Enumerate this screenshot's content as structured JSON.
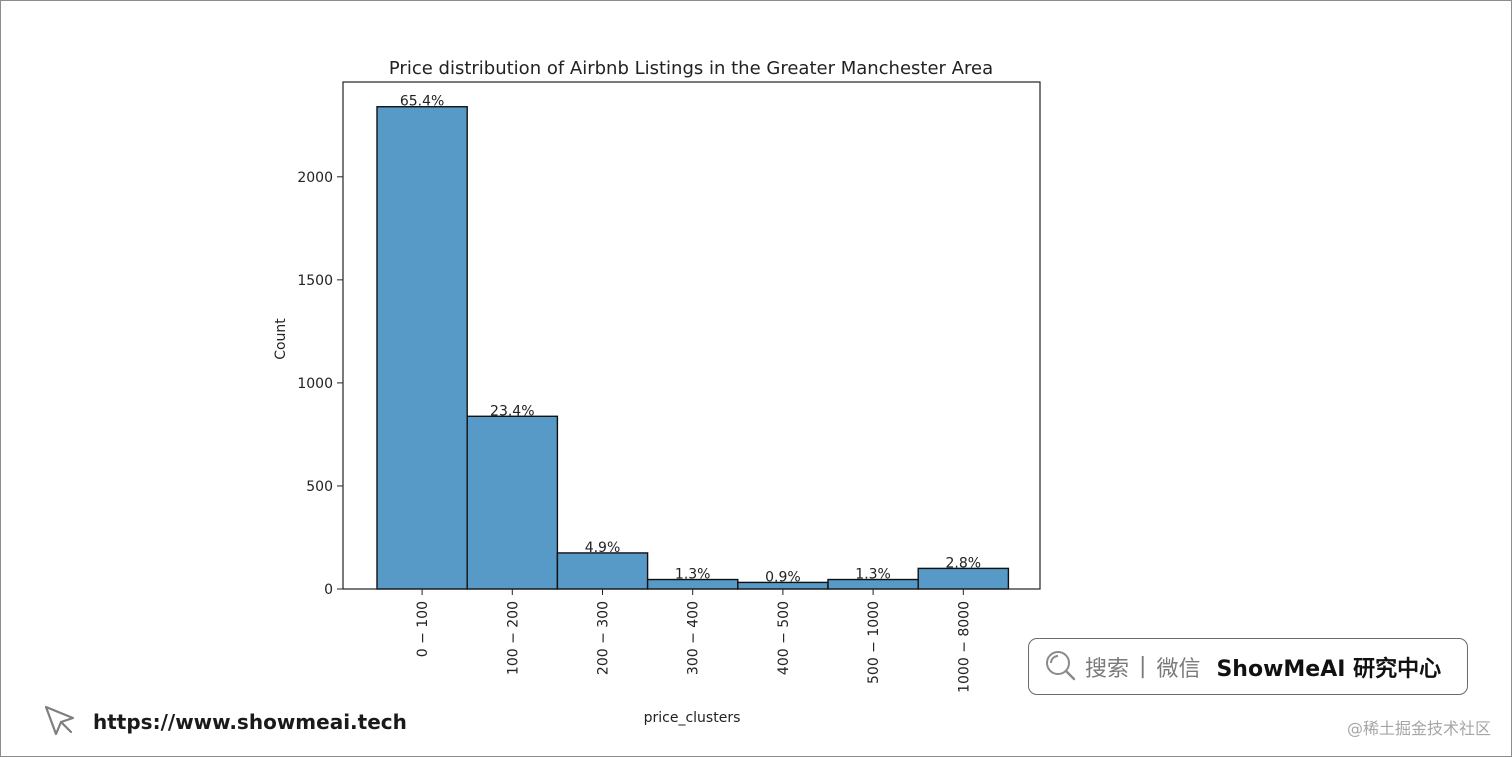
{
  "chart_data": {
    "type": "bar",
    "title": "Price distribution of Airbnb Listings in the Greater Manchester Area",
    "xlabel": "price_clusters",
    "ylabel": "Count",
    "categories": [
      "0 − 100",
      "100 − 200",
      "200 − 300",
      "300 − 400",
      "400 − 500",
      "500 − 1000",
      "1000 − 8000"
    ],
    "values": [
      2340,
      838,
      175,
      46,
      32,
      46,
      100
    ],
    "data_labels": [
      "65.4%",
      "23.4%",
      "4.9%",
      "1.3%",
      "0.9%",
      "1.3%",
      "2.8%"
    ],
    "yticks": [
      0,
      500,
      1000,
      1500,
      2000
    ],
    "ylim": [
      0,
      2460
    ],
    "grid": false,
    "bar_color": "#5799c7",
    "edge_color": "#111111"
  },
  "footer": {
    "url": "https://www.showmeai.tech",
    "search_label": "搜索",
    "separator": "|",
    "wechat_label": "微信",
    "brand": "ShowMeAI 研究中心",
    "credit": "@稀土掘金技术社区"
  },
  "icons": {
    "cursor": "cursor-arrow-icon",
    "search": "magnifier-icon"
  }
}
